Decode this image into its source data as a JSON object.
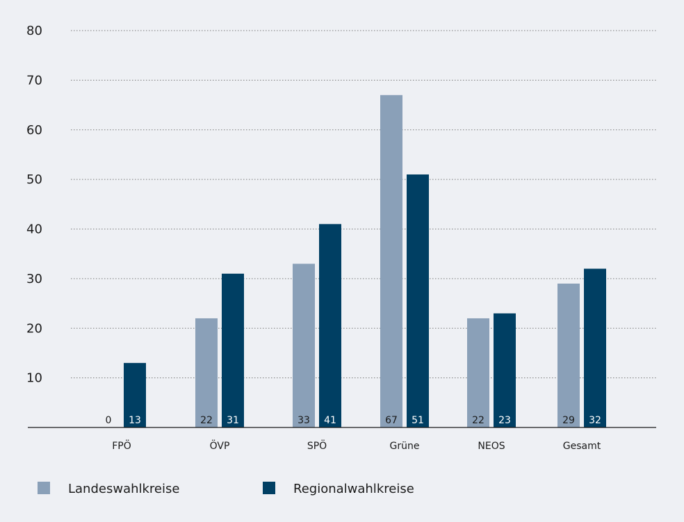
{
  "chart_data": {
    "type": "bar",
    "categories": [
      "FPÖ",
      "ÖVP",
      "SPÖ",
      "Grüne",
      "NEOS",
      "Gesamt"
    ],
    "series": [
      {
        "name": "Landeswahlkreise",
        "values": [
          0,
          22,
          33,
          67,
          22,
          29
        ],
        "color": "#8aa0b8"
      },
      {
        "name": "Regionalwahlkreise",
        "values": [
          13,
          31,
          41,
          51,
          23,
          32
        ],
        "color": "#003f63"
      }
    ],
    "ylim": [
      0,
      80
    ],
    "yticks": [
      10,
      20,
      30,
      40,
      50,
      60,
      70,
      80
    ],
    "grid": true,
    "legend_position": "bottom-left"
  }
}
